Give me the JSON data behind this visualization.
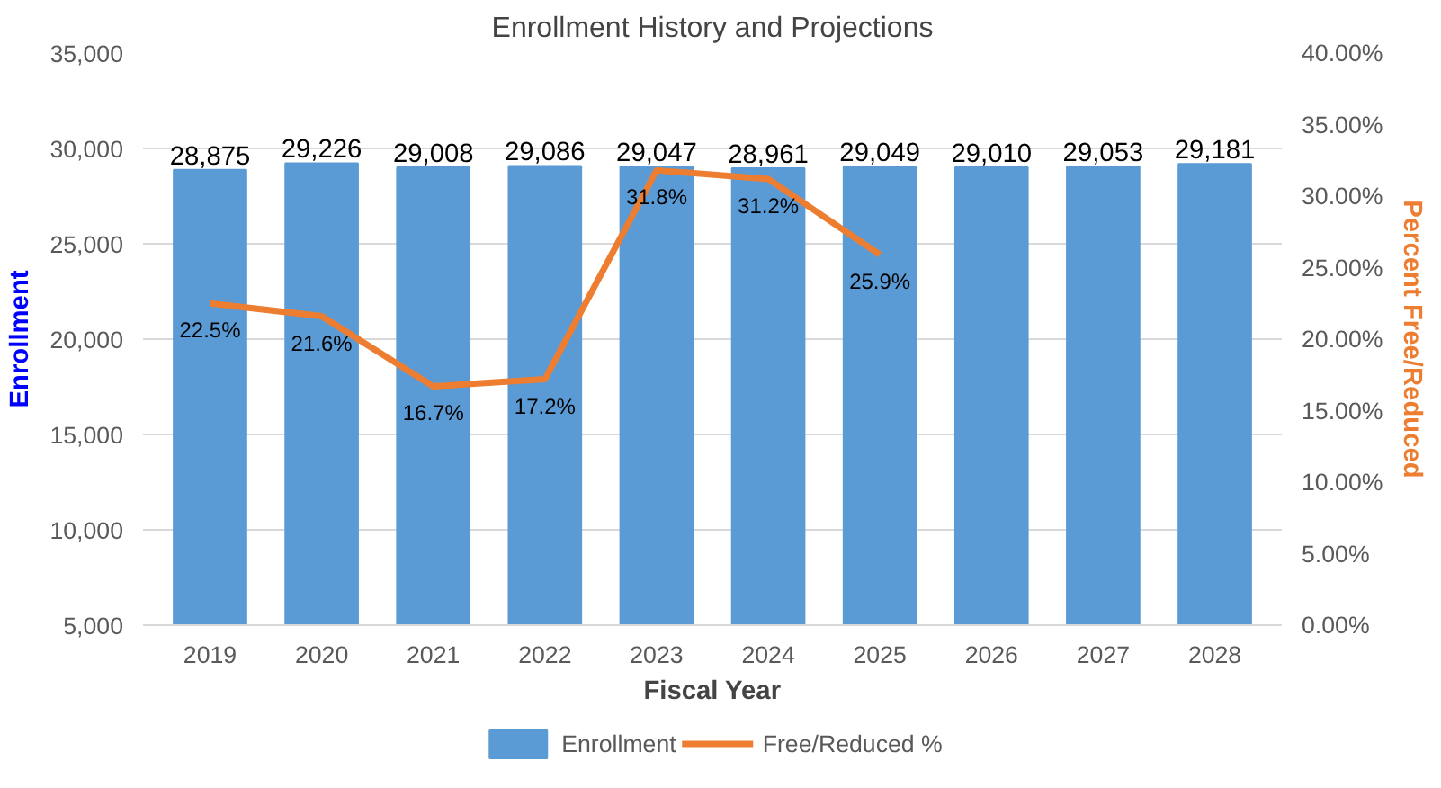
{
  "chart_data": {
    "type": "bar",
    "title": "Enrollment History and Projections",
    "xlabel": "Fiscal Year",
    "ylabel": "Enrollment",
    "y2label": "Percent Free/Reduced",
    "categories": [
      "2019",
      "2020",
      "2021",
      "2022",
      "2023",
      "2024",
      "2025",
      "2026",
      "2027",
      "2028"
    ],
    "series": [
      {
        "name": "Enrollment",
        "color": "#5b9bd5",
        "values": [
          28875,
          29226,
          29008,
          29086,
          29047,
          28961,
          29049,
          29010,
          29053,
          29181
        ],
        "value_labels": [
          "28,875",
          "29,226",
          "29,008",
          "29,086",
          "29,047",
          "28,961",
          "29,049",
          "29,010",
          "29,053",
          "29,181"
        ]
      },
      {
        "name": "Free/Reduced %",
        "type": "line",
        "axis": "y2",
        "color": "#ed7d31",
        "values": [
          22.5,
          21.6,
          16.7,
          17.2,
          31.8,
          31.2,
          25.9,
          null,
          null,
          null
        ],
        "value_labels": [
          "22.5%",
          "21.6%",
          "16.7%",
          "17.2%",
          "31.8%",
          "31.2%",
          "25.9%",
          null,
          null,
          null
        ]
      }
    ],
    "ylim": [
      5000,
      35000
    ],
    "yticks": [
      {
        "value": 5000,
        "label": "5,000"
      },
      {
        "value": 10000,
        "label": "10,000"
      },
      {
        "value": 15000,
        "label": "15,000"
      },
      {
        "value": 20000,
        "label": "20,000"
      },
      {
        "value": 25000,
        "label": "25,000"
      },
      {
        "value": 30000,
        "label": "30,000"
      },
      {
        "value": 35000,
        "label": "35,000"
      }
    ],
    "y2lim": [
      0,
      40
    ],
    "y2ticks": [
      {
        "value": 0,
        "label": "0.00%"
      },
      {
        "value": 5,
        "label": "5.00%"
      },
      {
        "value": 10,
        "label": "10.00%"
      },
      {
        "value": 15,
        "label": "15.00%"
      },
      {
        "value": 20,
        "label": "20.00%"
      },
      {
        "value": 25,
        "label": "25.00%"
      },
      {
        "value": 30,
        "label": "30.00%"
      },
      {
        "value": 35,
        "label": "35.00%"
      },
      {
        "value": 40,
        "label": "40.00%"
      }
    ],
    "grid": "y",
    "legend": "bottom",
    "marker": "none",
    "line_style": "solid"
  }
}
